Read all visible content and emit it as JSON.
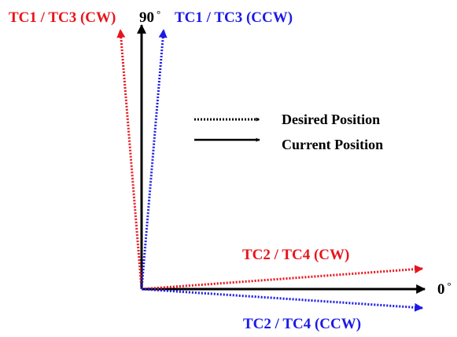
{
  "labels": {
    "tc13_cw": "TC1 / TC3 (CW)",
    "deg90": "90",
    "tc13_ccw": "TC1 / TC3 (CCW)",
    "tc24_cw": "TC2 / TC4 (CW)",
    "tc24_ccw": "TC2 / TC4 (CCW)",
    "deg0": "0"
  },
  "degree_symbol": "°",
  "legend": {
    "desired": "Desired Position",
    "current": "Current Position"
  },
  "colors": {
    "cw": "#e8141c",
    "ccw": "#1a1ae6",
    "axis": "#000000"
  }
}
